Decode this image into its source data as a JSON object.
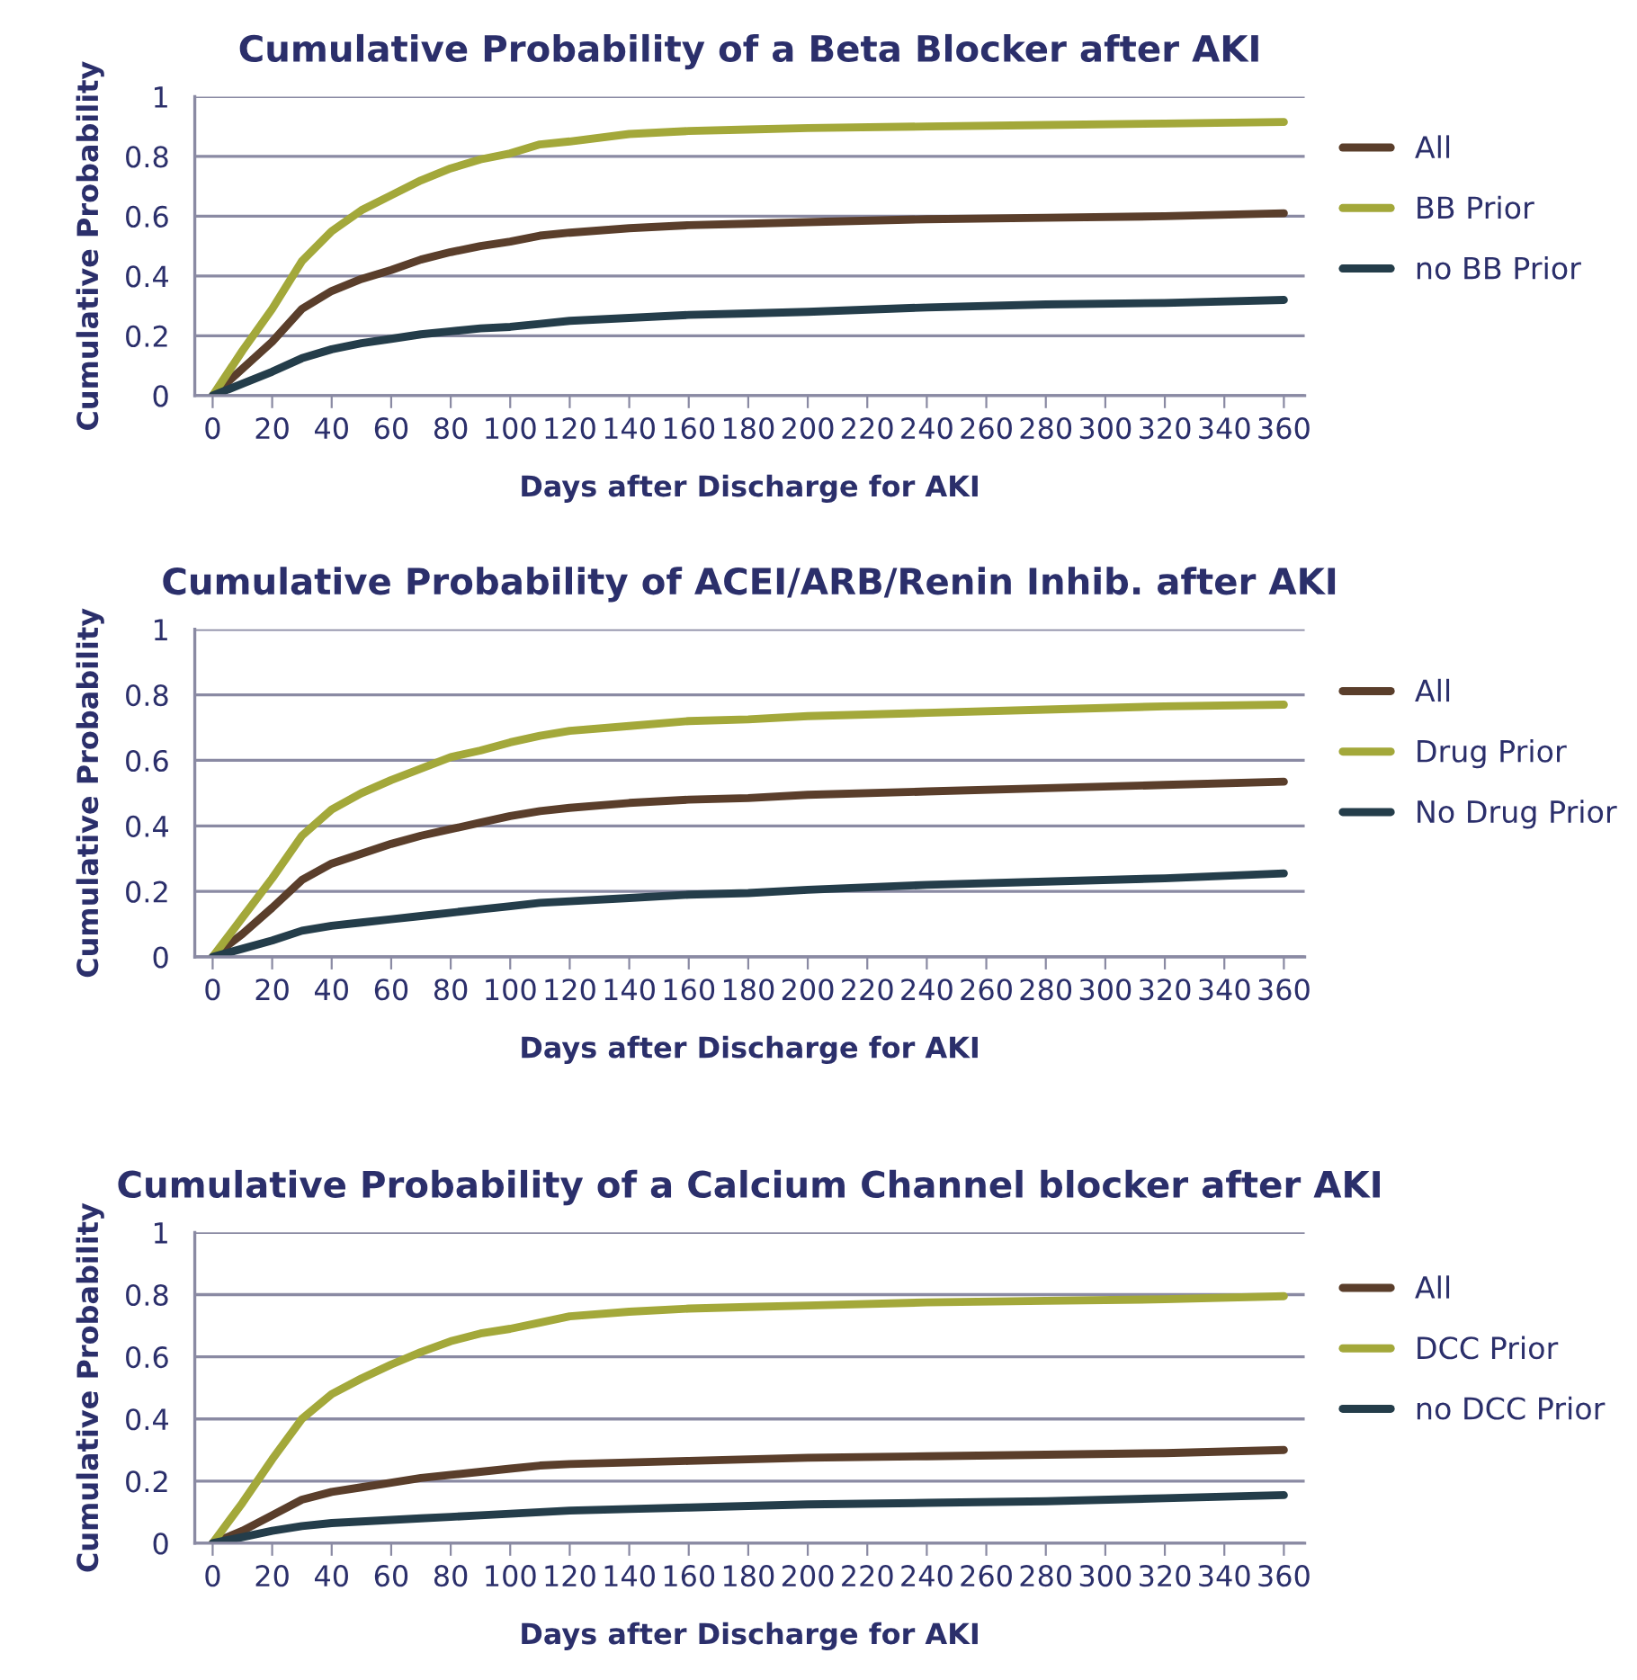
{
  "chart_data": [
    {
      "type": "line",
      "title": "Cumulative Probability of a Beta Blocker after AKI",
      "xlabel": "Days after Discharge for AKI",
      "ylabel": "Cumulative Probability",
      "x": [
        0,
        10,
        20,
        30,
        40,
        50,
        60,
        70,
        80,
        90,
        100,
        110,
        120,
        140,
        160,
        180,
        200,
        240,
        280,
        320,
        360
      ],
      "xlim": [
        -6,
        367
      ],
      "xticks": [
        0,
        20,
        40,
        60,
        80,
        100,
        120,
        140,
        160,
        180,
        200,
        220,
        240,
        260,
        280,
        300,
        320,
        340,
        360
      ],
      "ylim": [
        0,
        1
      ],
      "yticks": [
        0,
        0.2,
        0.4,
        0.6,
        0.8,
        1
      ],
      "grid": "y",
      "legend": "right",
      "marker": "none",
      "line_style": "solid",
      "series": [
        {
          "name": "All",
          "color": "#5a3e2b",
          "values": [
            0,
            0.09,
            0.18,
            0.29,
            0.35,
            0.39,
            0.42,
            0.455,
            0.48,
            0.5,
            0.515,
            0.535,
            0.545,
            0.56,
            0.57,
            0.575,
            0.58,
            0.59,
            0.595,
            0.6,
            0.61
          ]
        },
        {
          "name": "BB Prior",
          "color": "#a3a83a",
          "values": [
            0,
            0.15,
            0.29,
            0.45,
            0.55,
            0.62,
            0.67,
            0.72,
            0.76,
            0.79,
            0.81,
            0.84,
            0.85,
            0.875,
            0.885,
            0.89,
            0.895,
            0.9,
            0.905,
            0.91,
            0.915
          ]
        },
        {
          "name": "no BB Prior",
          "color": "#243d4a",
          "values": [
            0,
            0.04,
            0.08,
            0.125,
            0.155,
            0.175,
            0.19,
            0.205,
            0.215,
            0.225,
            0.23,
            0.24,
            0.25,
            0.26,
            0.27,
            0.275,
            0.28,
            0.295,
            0.305,
            0.31,
            0.32
          ]
        }
      ]
    },
    {
      "type": "line",
      "title": "Cumulative Probability of ACEI/ARB/Renin Inhib. after AKI",
      "xlabel": "Days after Discharge for AKI",
      "ylabel": "Cumulative Probability",
      "x": [
        0,
        10,
        20,
        30,
        40,
        50,
        60,
        70,
        80,
        90,
        100,
        110,
        120,
        140,
        160,
        180,
        200,
        240,
        280,
        320,
        360
      ],
      "xlim": [
        -6,
        367
      ],
      "xticks": [
        0,
        20,
        40,
        60,
        80,
        100,
        120,
        140,
        160,
        180,
        200,
        220,
        240,
        260,
        280,
        300,
        320,
        340,
        360
      ],
      "ylim": [
        0,
        1
      ],
      "yticks": [
        0,
        0.2,
        0.4,
        0.6,
        0.8,
        1
      ],
      "grid": "y",
      "legend": "right",
      "marker": "none",
      "line_style": "solid",
      "series": [
        {
          "name": "All",
          "color": "#5a3e2b",
          "values": [
            0,
            0.07,
            0.15,
            0.235,
            0.285,
            0.315,
            0.345,
            0.37,
            0.39,
            0.41,
            0.43,
            0.445,
            0.455,
            0.47,
            0.48,
            0.485,
            0.495,
            0.505,
            0.515,
            0.525,
            0.535
          ]
        },
        {
          "name": "Drug Prior",
          "color": "#a3a83a",
          "values": [
            0,
            0.12,
            0.24,
            0.37,
            0.45,
            0.5,
            0.54,
            0.575,
            0.61,
            0.63,
            0.655,
            0.675,
            0.69,
            0.705,
            0.72,
            0.725,
            0.735,
            0.745,
            0.755,
            0.765,
            0.77
          ]
        },
        {
          "name": "No Drug Prior",
          "color": "#243d4a",
          "values": [
            0,
            0.025,
            0.05,
            0.08,
            0.095,
            0.105,
            0.115,
            0.125,
            0.135,
            0.145,
            0.155,
            0.165,
            0.17,
            0.18,
            0.19,
            0.195,
            0.205,
            0.22,
            0.23,
            0.24,
            0.255
          ]
        }
      ]
    },
    {
      "type": "line",
      "title": "Cumulative Probability of a Calcium Channel blocker after AKI",
      "xlabel": "Days after Discharge for AKI",
      "ylabel": "Cumulative Probability",
      "x": [
        0,
        10,
        20,
        30,
        40,
        50,
        60,
        70,
        80,
        90,
        100,
        110,
        120,
        140,
        160,
        180,
        200,
        240,
        280,
        320,
        360
      ],
      "xlim": [
        -6,
        367
      ],
      "xticks": [
        0,
        20,
        40,
        60,
        80,
        100,
        120,
        140,
        160,
        180,
        200,
        220,
        240,
        260,
        280,
        300,
        320,
        340,
        360
      ],
      "ylim": [
        0,
        1
      ],
      "yticks": [
        0,
        0.2,
        0.4,
        0.6,
        0.8,
        1
      ],
      "grid": "y",
      "legend": "right",
      "marker": "none",
      "line_style": "solid",
      "series": [
        {
          "name": "All",
          "color": "#5a3e2b",
          "values": [
            0,
            0.04,
            0.09,
            0.14,
            0.165,
            0.18,
            0.195,
            0.21,
            0.22,
            0.23,
            0.24,
            0.25,
            0.255,
            0.26,
            0.265,
            0.27,
            0.275,
            0.28,
            0.285,
            0.29,
            0.3
          ]
        },
        {
          "name": "DCC Prior",
          "color": "#a3a83a",
          "values": [
            0,
            0.13,
            0.27,
            0.4,
            0.48,
            0.53,
            0.575,
            0.615,
            0.65,
            0.675,
            0.69,
            0.71,
            0.73,
            0.745,
            0.755,
            0.76,
            0.765,
            0.775,
            0.78,
            0.785,
            0.795
          ]
        },
        {
          "name": "no DCC Prior",
          "color": "#243d4a",
          "values": [
            0,
            0.02,
            0.04,
            0.055,
            0.065,
            0.07,
            0.075,
            0.08,
            0.085,
            0.09,
            0.095,
            0.1,
            0.105,
            0.11,
            0.115,
            0.12,
            0.125,
            0.13,
            0.135,
            0.145,
            0.155
          ]
        }
      ]
    }
  ]
}
